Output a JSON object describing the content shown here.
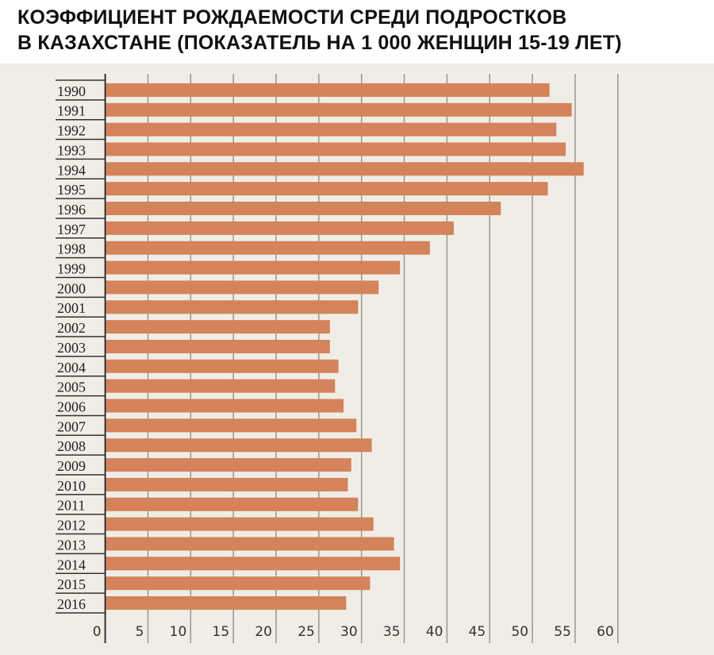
{
  "chart_data": {
    "type": "bar",
    "orientation": "horizontal",
    "title_line1": "КОЭФФИЦИЕНТ РОЖДАЕМОСТИ СРЕДИ ПОДРОСТКОВ",
    "title_line2": "В КАЗАХСТАНЕ (ПОКАЗАТЕЛЬ НА 1 000 ЖЕНЩИН 15-19 ЛЕТ)",
    "categories": [
      "1990",
      "1991",
      "1992",
      "1993",
      "1994",
      "1995",
      "1996",
      "1997",
      "1998",
      "1999",
      "2000",
      "2001",
      "2002",
      "2003",
      "2004",
      "2005",
      "2006",
      "2007",
      "2008",
      "2009",
      "2010",
      "2011",
      "2012",
      "2013",
      "2014",
      "2015",
      "2016"
    ],
    "values": [
      52.0,
      54.6,
      52.8,
      53.9,
      56.0,
      51.8,
      46.3,
      40.8,
      38.0,
      34.5,
      32.0,
      29.6,
      26.3,
      26.3,
      27.3,
      26.9,
      27.9,
      29.4,
      31.2,
      28.8,
      28.4,
      29.6,
      31.4,
      33.8,
      34.5,
      31.0,
      28.2
    ],
    "xticks": [
      "0",
      "5",
      "10",
      "15",
      "20",
      "25",
      "30",
      "35",
      "40",
      "45",
      "50",
      "55",
      "60"
    ],
    "xlim": [
      0,
      60
    ],
    "grid": true,
    "bar_color": "#d4835a",
    "background_color": "#efede6"
  }
}
